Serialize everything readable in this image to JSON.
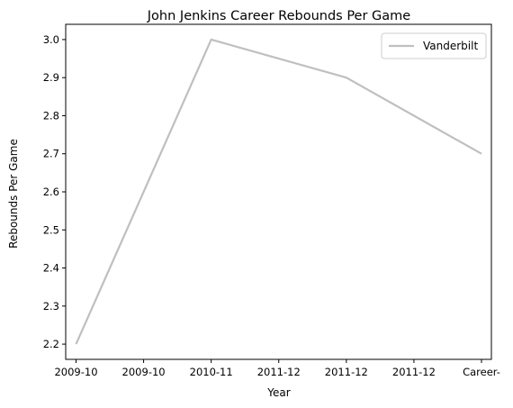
{
  "chart_data": {
    "type": "line",
    "title": "John Jenkins  Career Rebounds Per Game",
    "xlabel": "Year",
    "ylabel": "Rebounds Per Game",
    "x_tick_labels": [
      "2009-10",
      "2009-10",
      "2010-11",
      "2011-12",
      "2011-12",
      "2011-12",
      "Career-"
    ],
    "y_ticks": [
      "2.2",
      "2.3",
      "2.4",
      "2.5",
      "2.6",
      "2.7",
      "2.8",
      "2.9",
      "3.0"
    ],
    "ylim": [
      2.16,
      3.04
    ],
    "series": [
      {
        "name": "Vanderbilt",
        "color": "#bfbfbf",
        "points": [
          [
            0,
            2.2
          ],
          [
            2,
            3.0
          ],
          [
            4,
            2.9
          ],
          [
            6,
            2.7
          ]
        ]
      }
    ],
    "legend_location": "top-right",
    "grid": false
  }
}
